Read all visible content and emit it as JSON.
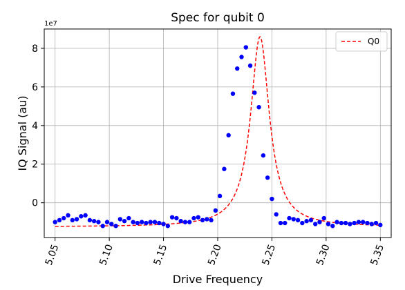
{
  "chart_data": {
    "type": "scatter",
    "title": "Spec for qubit 0",
    "xlabel": "Drive Frequency",
    "ylabel": "IQ Signal (au)",
    "y_offset_label": "1e7",
    "xlim": [
      5.04,
      5.36
    ],
    "ylim": [
      -1.8,
      9.0
    ],
    "x_ticks": [
      5.05,
      5.1,
      5.15,
      5.2,
      5.25,
      5.3,
      5.35
    ],
    "x_tick_labels": [
      "5.05",
      "5.10",
      "5.15",
      "5.20",
      "5.25",
      "5.30",
      "5.35"
    ],
    "y_ticks": [
      0,
      2,
      4,
      6,
      8
    ],
    "y_tick_labels": [
      "0",
      "2",
      "4",
      "6",
      "8"
    ],
    "grid": true,
    "legend_position": "top-right",
    "colors": {
      "points": "#0000ff",
      "fit": "#ff0000"
    },
    "series": [
      {
        "kind": "points",
        "x": [
          5.05,
          5.054,
          5.058,
          5.062,
          5.066,
          5.07,
          5.074,
          5.078,
          5.082,
          5.086,
          5.09,
          5.094,
          5.098,
          5.102,
          5.106,
          5.11,
          5.114,
          5.118,
          5.122,
          5.126,
          5.13,
          5.134,
          5.138,
          5.142,
          5.146,
          5.15,
          5.154,
          5.158,
          5.162,
          5.166,
          5.17,
          5.174,
          5.178,
          5.182,
          5.186,
          5.19,
          5.194,
          5.198,
          5.202,
          5.206,
          5.21,
          5.214,
          5.218,
          5.222,
          5.226,
          5.23,
          5.234,
          5.238,
          5.242,
          5.246,
          5.25,
          5.254,
          5.258,
          5.262,
          5.266,
          5.27,
          5.274,
          5.278,
          5.282,
          5.286,
          5.29,
          5.294,
          5.298,
          5.302,
          5.306,
          5.31,
          5.314,
          5.318,
          5.322,
          5.326,
          5.33,
          5.334,
          5.338,
          5.342,
          5.346,
          5.35
        ],
        "y": [
          -1.0,
          -0.9,
          -0.8,
          -0.65,
          -0.9,
          -0.85,
          -0.7,
          -0.65,
          -0.9,
          -0.95,
          -1.0,
          -1.2,
          -1.0,
          -1.1,
          -1.2,
          -0.85,
          -0.95,
          -0.8,
          -1.0,
          -1.05,
          -1.0,
          -1.05,
          -1.0,
          -1.0,
          -1.05,
          -1.1,
          -1.2,
          -0.75,
          -0.8,
          -0.95,
          -1.0,
          -1.0,
          -0.8,
          -0.75,
          -0.9,
          -0.85,
          -0.9,
          -0.4,
          0.35,
          1.75,
          3.5,
          5.65,
          6.95,
          7.55,
          8.05,
          7.1,
          5.7,
          4.95,
          2.45,
          1.3,
          0.2,
          -0.6,
          -1.05,
          -1.05,
          -0.8,
          -0.85,
          -0.9,
          -1.05,
          -0.95,
          -0.9,
          -1.1,
          -1.0,
          -0.8,
          -1.1,
          -1.2,
          -1.0,
          -1.05,
          -1.05,
          -1.1,
          -1.05,
          -1.0,
          -1.0,
          -1.05,
          -1.1,
          -1.05,
          -1.15
        ]
      },
      {
        "kind": "fit",
        "name": "Q0",
        "model": "lorentzian",
        "center": 5.239,
        "hwhm": 0.0105,
        "amplitude": 9.85,
        "baseline": -1.25
      }
    ]
  }
}
